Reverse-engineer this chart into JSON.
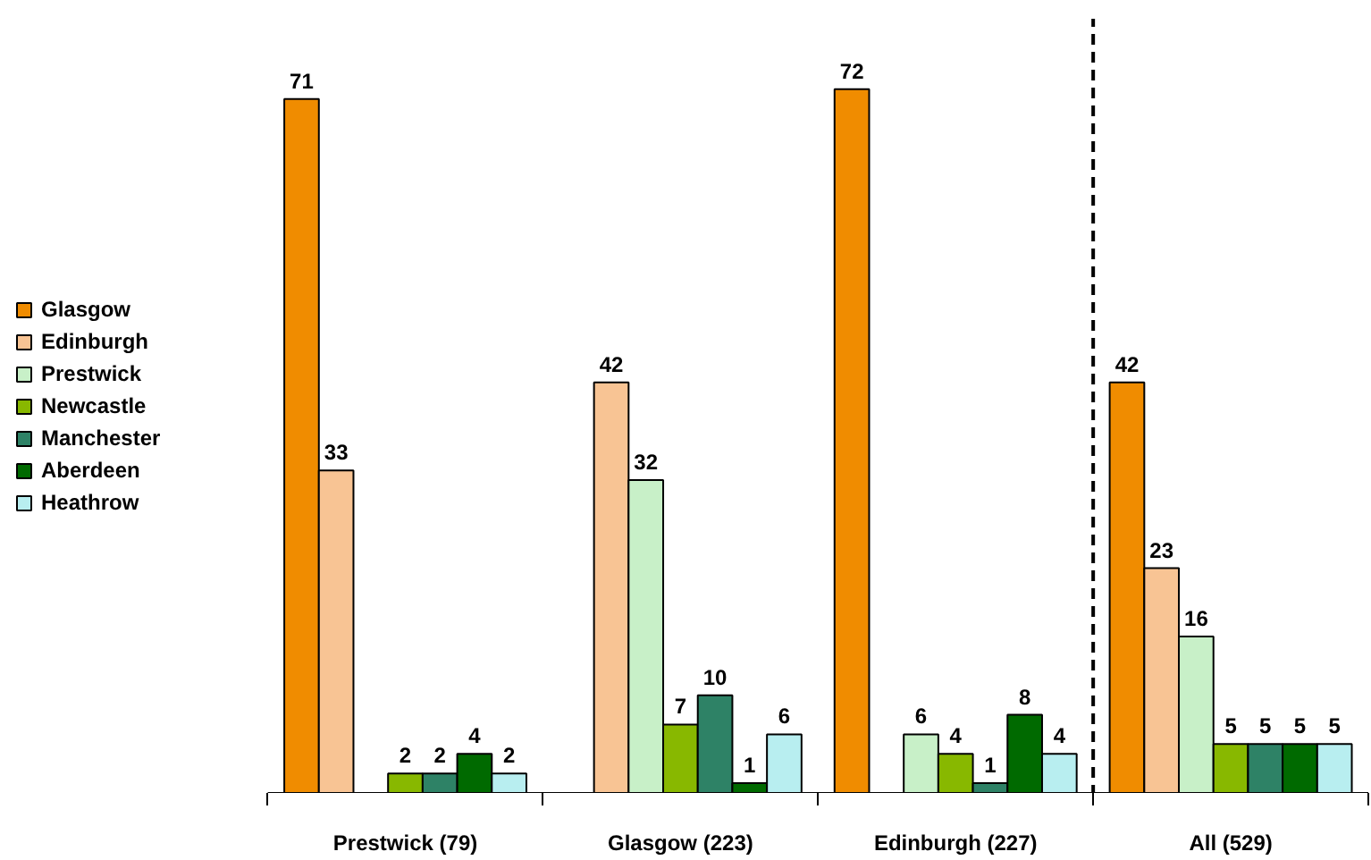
{
  "chart_data": {
    "type": "bar",
    "categories": [
      "Prestwick (79)",
      "Glasgow (223)",
      "Edinburgh (227)",
      "All (529)"
    ],
    "series": [
      {
        "name": "Glasgow",
        "color": "#f08c00",
        "values": [
          71,
          null,
          72,
          42
        ]
      },
      {
        "name": "Edinburgh",
        "color": "#f8c494",
        "values": [
          33,
          42,
          null,
          23
        ]
      },
      {
        "name": "Prestwick",
        "color": "#c8f0c8",
        "values": [
          null,
          32,
          6,
          16
        ]
      },
      {
        "name": "Newcastle",
        "color": "#88b800",
        "values": [
          2,
          7,
          4,
          5
        ]
      },
      {
        "name": "Manchester",
        "color": "#2e8266",
        "values": [
          2,
          10,
          1,
          5
        ]
      },
      {
        "name": "Aberdeen",
        "color": "#006a00",
        "values": [
          4,
          1,
          8,
          5
        ]
      },
      {
        "name": "Heathrow",
        "color": "#b8eef0",
        "values": [
          2,
          6,
          4,
          5
        ]
      }
    ],
    "data_labels": true,
    "legend": "left",
    "grid": false
  }
}
